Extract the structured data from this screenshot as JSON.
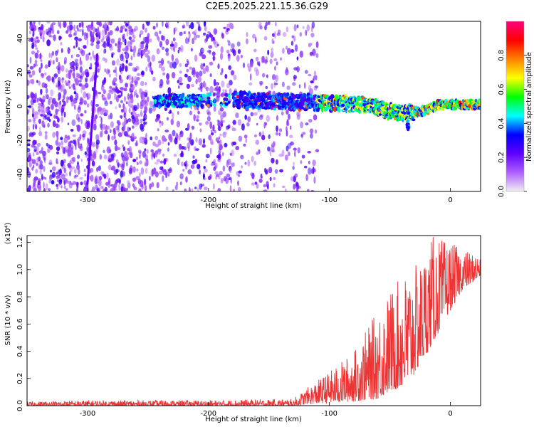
{
  "title": "C2E5.2025.221.15.36.G29",
  "chart_data": [
    {
      "type": "heatmap",
      "xlabel": "Height of straight line (km)",
      "ylabel": "Frequency (Hz)",
      "xlim": [
        -350,
        25
      ],
      "ylim": [
        -50,
        50
      ],
      "x_ticks": [
        -300,
        -200,
        -100,
        0
      ],
      "y_ticks": [
        -40,
        -20,
        0,
        20,
        40
      ],
      "colorbar": {
        "label": "Normalized spectral amplitude",
        "range": [
          0,
          1
        ],
        "ticks": [
          "0.0",
          "0.2",
          "0.4",
          "0.6",
          "0.8"
        ],
        "colors": [
          "#f0f0f0",
          "#b060ff",
          "#6000ff",
          "#0000ff",
          "#00ffff",
          "#00ff00",
          "#ffff00",
          "#ff8000",
          "#ff0000",
          "#ff0080"
        ]
      },
      "noise_region_x": [
        -350,
        -120
      ],
      "signal_ridge": [
        {
          "x": -245,
          "y": 3
        },
        {
          "x": -180,
          "y": 4
        },
        {
          "x": -150,
          "y": 3
        },
        {
          "x": -100,
          "y": 2
        },
        {
          "x": -70,
          "y": 1
        },
        {
          "x": -50,
          "y": -3
        },
        {
          "x": -35,
          "y": -4
        },
        {
          "x": -20,
          "y": -2
        },
        {
          "x": -10,
          "y": 1
        },
        {
          "x": 25,
          "y": 1
        }
      ]
    },
    {
      "type": "line",
      "xlabel": "Height of straight line (km)",
      "ylabel": "SNR (10 * v/v)",
      "y_multiplier": "(x10⁴)",
      "xlim": [
        -350,
        25
      ],
      "ylim": [
        0,
        1.25
      ],
      "x_ticks": [
        -300,
        -200,
        -100,
        0
      ],
      "y_ticks": [
        "0.0",
        "0.2",
        "0.4",
        "0.6",
        "0.8",
        "1.0",
        "1.2"
      ],
      "series_color": "#ee3333",
      "envelope": [
        {
          "x": -350,
          "low": 0.0,
          "high": 0.03
        },
        {
          "x": -300,
          "low": 0.0,
          "high": 0.04
        },
        {
          "x": -200,
          "low": 0.0,
          "high": 0.04
        },
        {
          "x": -130,
          "low": 0.0,
          "high": 0.05
        },
        {
          "x": -120,
          "low": 0.01,
          "high": 0.12
        },
        {
          "x": -100,
          "low": 0.02,
          "high": 0.25
        },
        {
          "x": -80,
          "low": 0.03,
          "high": 0.4
        },
        {
          "x": -60,
          "low": 0.05,
          "high": 0.7
        },
        {
          "x": -50,
          "low": 0.1,
          "high": 0.85
        },
        {
          "x": -35,
          "low": 0.15,
          "high": 1.0
        },
        {
          "x": -25,
          "low": 0.3,
          "high": 1.05
        },
        {
          "x": -15,
          "low": 0.45,
          "high": 1.25
        },
        {
          "x": 0,
          "low": 0.7,
          "high": 1.2
        },
        {
          "x": 10,
          "low": 0.85,
          "high": 1.15
        },
        {
          "x": 25,
          "low": 0.95,
          "high": 1.1
        }
      ]
    }
  ]
}
